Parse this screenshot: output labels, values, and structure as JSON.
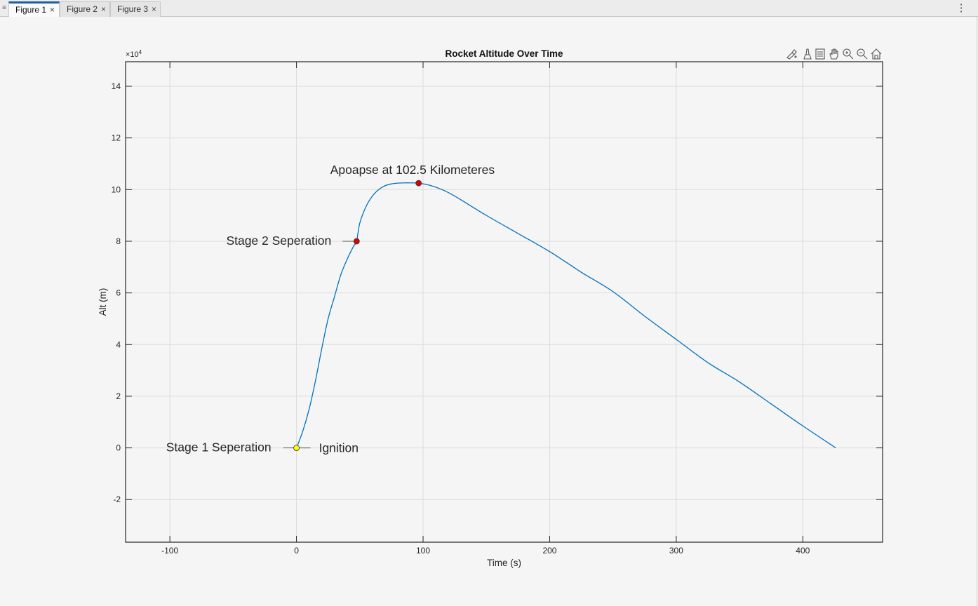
{
  "tabs": [
    {
      "label": "Figure 1",
      "active": true
    },
    {
      "label": "Figure 2",
      "active": false
    },
    {
      "label": "Figure 3",
      "active": false
    }
  ],
  "icons": {
    "tab_close": "close-icon",
    "panel_grip": "grip-icon",
    "overflow_menu": "vertical-ellipsis-icon",
    "toolbar": [
      "brush-icon",
      "data-tips-icon",
      "legend-icon",
      "pan-icon",
      "zoom-in-icon",
      "zoom-out-icon",
      "home-icon"
    ]
  },
  "glyphs": {
    "close": "×",
    "menu": "⋮",
    "grip": "≡"
  },
  "colors": {
    "line": "#0072bd",
    "marker_red": "#e00000",
    "marker_yellow": "#ffff00",
    "grid": "#dcdcdc",
    "axis": "#262626"
  },
  "chart_data": {
    "type": "line",
    "title": "Rocket Altitude Over Time",
    "xlabel": "Time (s)",
    "ylabel": "Alt (m)",
    "y_exponent_label": "×10",
    "y_exponent_power": "4",
    "xlim": [
      -135,
      463
    ],
    "ylim": [
      -3.65,
      14.95
    ],
    "xticks": [
      -100,
      0,
      100,
      200,
      300,
      400
    ],
    "xtick_labels": [
      "-100",
      "0",
      "100",
      "200",
      "300",
      "400"
    ],
    "yticks": [
      -2,
      0,
      2,
      4,
      6,
      8,
      10,
      12,
      14
    ],
    "ytick_labels": [
      "-2",
      "0",
      "2",
      "4",
      "6",
      "8",
      "10",
      "12",
      "14"
    ],
    "grid": true,
    "series": [
      {
        "x": [
          0,
          5,
          10,
          15,
          20,
          25,
          30,
          35,
          40,
          45,
          47.5,
          50,
          55,
          60,
          65,
          70,
          75,
          80,
          85,
          90,
          96.5,
          105,
          115,
          125,
          135,
          150,
          175,
          200,
          225,
          250,
          275,
          300,
          325,
          350,
          375,
          400,
          426
        ],
        "y": [
          0,
          0.65,
          1.5,
          2.6,
          3.85,
          5.0,
          5.85,
          6.7,
          7.3,
          7.8,
          8.0,
          8.7,
          9.35,
          9.75,
          10.0,
          10.15,
          10.22,
          10.25,
          10.26,
          10.26,
          10.25,
          10.17,
          10.0,
          9.75,
          9.45,
          9.0,
          8.3,
          7.6,
          6.8,
          6.05,
          5.1,
          4.2,
          3.3,
          2.55,
          1.7,
          0.85,
          0
        ]
      }
    ],
    "markers": [
      {
        "x": 0,
        "y": 0,
        "color": "yellow"
      },
      {
        "x": 47.5,
        "y": 8.0,
        "color": "red"
      },
      {
        "x": 96.5,
        "y": 10.25,
        "color": "red"
      }
    ],
    "annotations": [
      {
        "text": "Apoapse at 102.5 Kilometeres",
        "x": 96.5,
        "y": 10.25
      },
      {
        "text": "Stage  2  Seperation",
        "x": 47.5,
        "y": 8.0
      },
      {
        "text": "Stage  1  Seperation",
        "x": 0,
        "y": 0
      },
      {
        "text": "Ignition",
        "x": 0,
        "y": 0
      }
    ]
  }
}
